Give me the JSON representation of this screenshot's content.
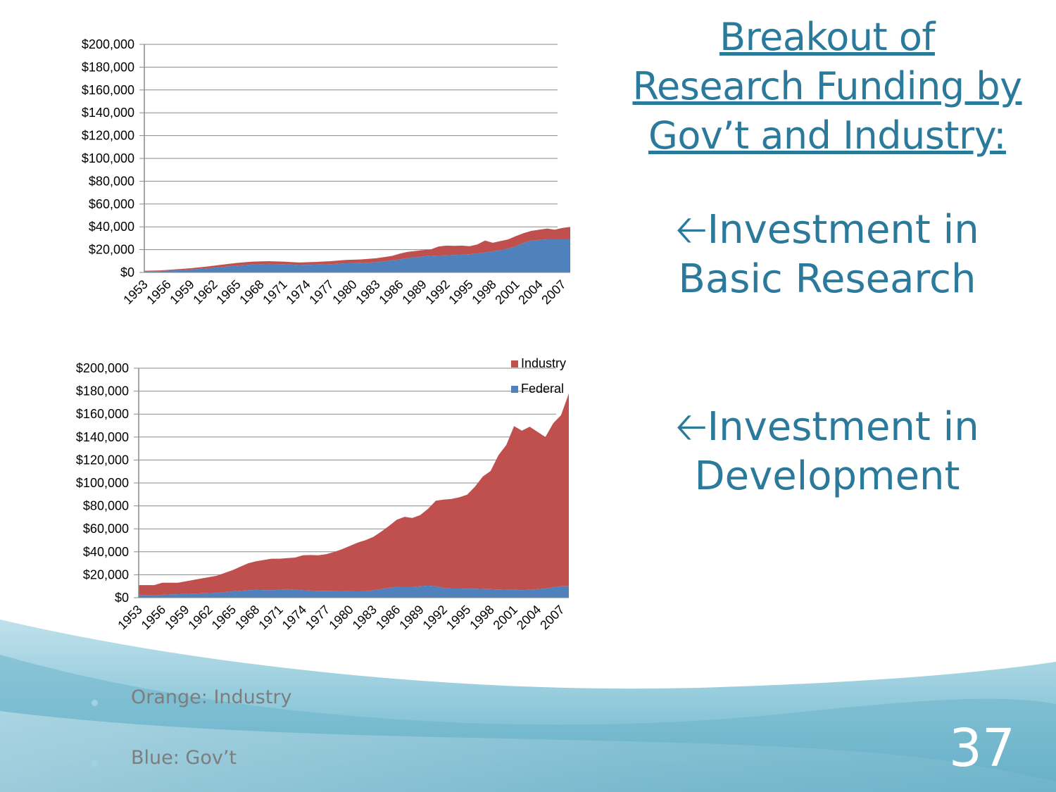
{
  "slide": {
    "title_lines": [
      "Breakout of",
      "Research Funding by",
      "Gov’t and Industry:"
    ],
    "basic_note": [
      "🡠Investment in",
      "Basic Research"
    ],
    "dev_note": [
      "🡠Investment in",
      "Development"
    ],
    "bullets": [
      "Orange: Industry",
      "Blue: Gov’t"
    ],
    "page_number": "37",
    "colors": {
      "title": "#2b7a9c",
      "industry": "#c0504d",
      "federal": "#4f81bd",
      "bullet_dot": "#9fd3e3"
    }
  },
  "chart_data": [
    {
      "type": "area",
      "stacked": true,
      "legend": "none",
      "x_tick_labels": [
        "1953",
        "1956",
        "1959",
        "1962",
        "1965",
        "1968",
        "1971",
        "1974",
        "1977",
        "1980",
        "1983",
        "1986",
        "1989",
        "1992",
        "1995",
        "1998",
        "2001",
        "2004",
        "2007"
      ],
      "y_tick_labels": [
        "$0",
        "$20,000",
        "$40,000",
        "$60,000",
        "$80,000",
        "$100,000",
        "$120,000",
        "$140,000",
        "$160,000",
        "$180,000",
        "$200,000"
      ],
      "ylim": [
        0,
        200000
      ],
      "grid": true,
      "x": [
        1953,
        1955,
        1957,
        1959,
        1961,
        1963,
        1965,
        1967,
        1969,
        1971,
        1973,
        1975,
        1977,
        1979,
        1981,
        1983,
        1985,
        1986,
        1987,
        1989,
        1990,
        1991,
        1992,
        1993,
        1994,
        1995,
        1996,
        1997,
        1998,
        1999,
        2000,
        2001,
        2002,
        2003,
        2004,
        2005,
        2006,
        2007,
        2008
      ],
      "series": [
        {
          "name": "Federal",
          "color": "#4f81bd",
          "values": [
            1000,
            1200,
            1800,
            2500,
            3500,
            4800,
            6000,
            7000,
            7500,
            7200,
            6500,
            6800,
            7200,
            8000,
            8200,
            9000,
            10500,
            11500,
            12500,
            14000,
            14500,
            14800,
            15000,
            15300,
            15500,
            16000,
            16500,
            17500,
            18500,
            19500,
            21000,
            23000,
            26000,
            28000,
            28500,
            29000,
            29000,
            29000,
            29000
          ]
        },
        {
          "name": "Industry",
          "color": "#c0504d",
          "values": [
            500,
            600,
            900,
            1200,
            1600,
            2000,
            2400,
            2500,
            2400,
            2300,
            2200,
            2400,
            2700,
            3000,
            3200,
            3500,
            4000,
            5000,
            5500,
            5600,
            5700,
            8000,
            8500,
            8000,
            8000,
            7000,
            8000,
            10500,
            7500,
            8000,
            8000,
            9000,
            8500,
            8500,
            9000,
            9500,
            8500,
            10000,
            11000
          ]
        }
      ]
    },
    {
      "type": "area",
      "stacked": true,
      "legend": "top-right",
      "x_tick_labels": [
        "1953",
        "1956",
        "1959",
        "1962",
        "1965",
        "1968",
        "1971",
        "1974",
        "1977",
        "1980",
        "1983",
        "1986",
        "1989",
        "1992",
        "1995",
        "1998",
        "2001",
        "2004",
        "2007"
      ],
      "y_tick_labels": [
        "$0",
        "$20,000",
        "$40,000",
        "$60,000",
        "$80,000",
        "$100,000",
        "$120,000",
        "$140,000",
        "$160,000",
        "$180,000",
        "$200,000"
      ],
      "ylim": [
        0,
        200000
      ],
      "grid": true,
      "x": [
        1953,
        1955,
        1956,
        1957,
        1958,
        1960,
        1962,
        1963,
        1965,
        1967,
        1968,
        1970,
        1971,
        1972,
        1973,
        1974,
        1975,
        1976,
        1977,
        1978,
        1979,
        1980,
        1981,
        1982,
        1983,
        1984,
        1985,
        1986,
        1987,
        1988,
        1989,
        1990,
        1991,
        1992,
        1993,
        1994,
        1995,
        1996,
        1997,
        1998,
        1999,
        2000,
        2001,
        2002,
        2003,
        2004,
        2005,
        2006,
        2007,
        2008
      ],
      "series": [
        {
          "name": "Federal",
          "color": "#4f81bd",
          "values": [
            2000,
            2000,
            2500,
            2800,
            3000,
            3500,
            4000,
            4200,
            5500,
            6500,
            6800,
            6500,
            7000,
            7500,
            7000,
            6500,
            6200,
            6000,
            6000,
            5900,
            5800,
            5600,
            5500,
            5600,
            6500,
            7500,
            8500,
            9500,
            9500,
            9500,
            10000,
            10500,
            10000,
            8500,
            8000,
            8000,
            7800,
            7800,
            7600,
            7400,
            7200,
            7000,
            7000,
            6500,
            7000,
            7500,
            8000,
            9000,
            10000,
            10000
          ]
        },
        {
          "name": "Industry",
          "color": "#c0504d",
          "values": [
            9000,
            9000,
            10500,
            10200,
            10000,
            12000,
            14000,
            15000,
            18500,
            23500,
            25000,
            27500,
            27000,
            27000,
            28000,
            30500,
            31000,
            31000,
            32000,
            34000,
            36500,
            39500,
            42500,
            44500,
            46500,
            50000,
            54000,
            58500,
            61000,
            60000,
            62000,
            67000,
            74500,
            77000,
            78000,
            79500,
            82000,
            89000,
            98000,
            103000,
            117000,
            126000,
            142500,
            139000,
            142000,
            137000,
            132000,
            143000,
            149000,
            168000
          ]
        }
      ]
    }
  ]
}
